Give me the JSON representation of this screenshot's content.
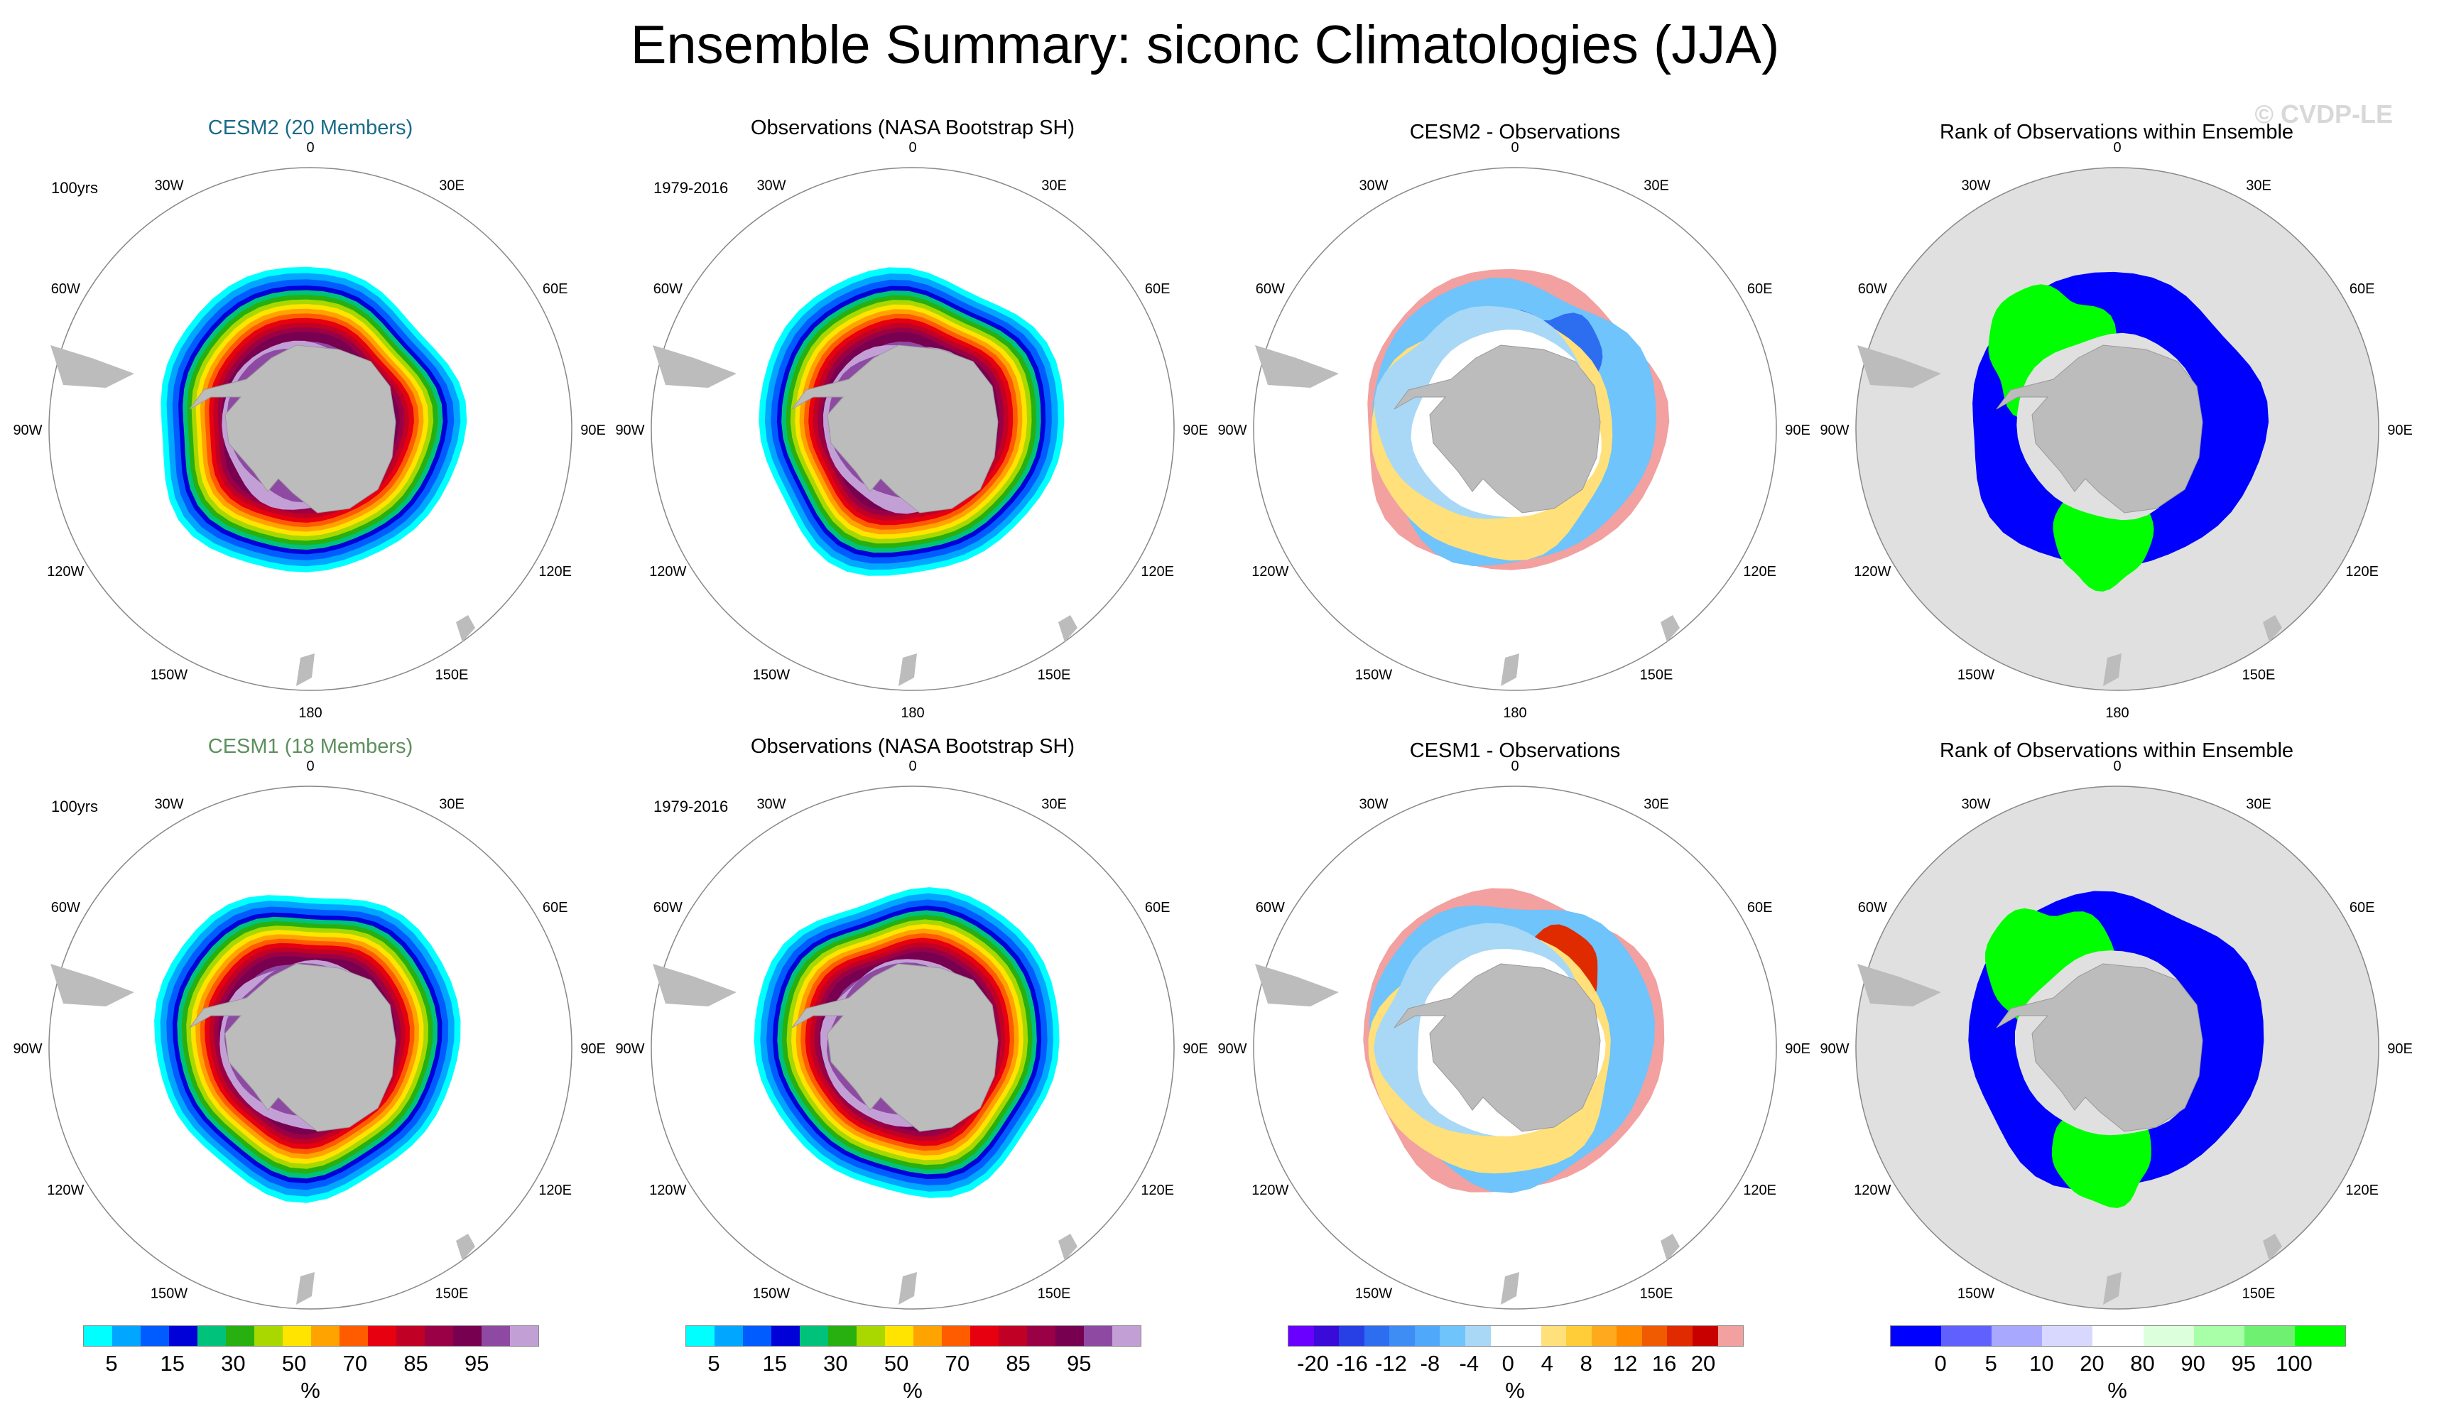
{
  "title": "Ensemble Summary: siconc Climatologies (JJA)",
  "watermark": "© CVDP-LE",
  "lon_labels": [
    "0",
    "30E",
    "60E",
    "90E",
    "120E",
    "150E",
    "180",
    "150W",
    "120W",
    "90W",
    "60W",
    "30W"
  ],
  "colors": {
    "siconc": [
      "#00ffff",
      "#00a6ff",
      "#005cff",
      "#0000d8",
      "#00c27a",
      "#27b010",
      "#a8d800",
      "#ffe400",
      "#ffa300",
      "#ff5c00",
      "#e60010",
      "#c00025",
      "#9a0045",
      "#770050",
      "#8e4aa3",
      "#c2a0d6"
    ],
    "diff": [
      "#6a00ff",
      "#3a0ad8",
      "#2640e6",
      "#2d6ef0",
      "#3d8df5",
      "#4fa8fa",
      "#6ec4fb",
      "#a8d8f5",
      "#ffffff",
      "#ffffff",
      "#ffe07a",
      "#ffcd38",
      "#ffaa1e",
      "#ff8a00",
      "#f05a00",
      "#e02a00",
      "#c80000",
      "#f2a0a0"
    ],
    "rank": [
      "#0000ff",
      "#6060ff",
      "#a8a8ff",
      "#d8d8ff",
      "#ffffff",
      "#dcffdc",
      "#a8ffa8",
      "#70f070",
      "#00ff00"
    ],
    "land": "#bcbcbc",
    "rank_bg": "#e0e0e0"
  },
  "rows": [
    {
      "model_title": "CESM2 (20 Members)",
      "model_title_color": "#1a6b8a",
      "model_period": "100yrs",
      "obs_title": "Observations (NASA Bootstrap SH)",
      "obs_period": "1979-2016",
      "diff_title": "CESM2 - Observations",
      "rank_title": "Rank of Observations within Ensemble"
    },
    {
      "model_title": "CESM1 (18 Members)",
      "model_title_color": "#5e8f5e",
      "model_period": "100yrs",
      "obs_title": "Observations (NASA Bootstrap SH)",
      "obs_period": "1979-2016",
      "diff_title": "CESM1 - Observations",
      "rank_title": "Rank of Observations within Ensemble"
    }
  ],
  "colorbars": {
    "siconc": {
      "labels": [
        "5",
        "15",
        "30",
        "50",
        "70",
        "85",
        "95"
      ],
      "unit": "%"
    },
    "diff": {
      "labels": [
        "-20",
        "-16",
        "-12",
        "-8",
        "-4",
        "0",
        "4",
        "8",
        "12",
        "16",
        "20"
      ],
      "unit": "%"
    },
    "rank": {
      "labels": [
        "0",
        "5",
        "10",
        "20",
        "80",
        "90",
        "95",
        "100"
      ],
      "unit": "%"
    }
  }
}
